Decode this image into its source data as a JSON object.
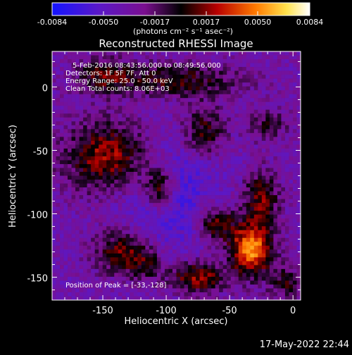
{
  "chart_data": {
    "type": "heatmap",
    "title": "Reconstructed RHESSI Image",
    "xlabel": "Heliocentric X (arcsec)",
    "ylabel": "Heliocentric Y (arcsec)",
    "xlim": [
      -190,
      6
    ],
    "ylim": [
      -168,
      28
    ],
    "xticks": [
      -150,
      -100,
      -50,
      0
    ],
    "yticks": [
      0,
      -50,
      -100,
      -150
    ],
    "colorbar": {
      "label": "(photons cm⁻² s⁻¹ asec⁻²)",
      "range": [
        -0.0084,
        0.0084
      ],
      "ticks": [
        "-0.0084",
        "-0.0050",
        "-0.0017",
        "0.0017",
        "0.0050",
        "0.0084"
      ],
      "colors": [
        "#1414ff",
        "#7a0f8f",
        "#000000",
        "#b80000",
        "#ff7a00",
        "#ffe24d",
        "#ffffff"
      ]
    },
    "info_lines": [
      "5-Feb-2016 08:43:56.000 to 08:49:56.000",
      "Detectors: 1F 5F 7F, Att 0",
      "Energy Range: 25.0 - 50.0 keV",
      "Clean    Total counts: 8.06E+03"
    ],
    "peak_annotation": "Position of Peak = [-33,-128]",
    "timestamp": "17-May-2022 22:44"
  }
}
